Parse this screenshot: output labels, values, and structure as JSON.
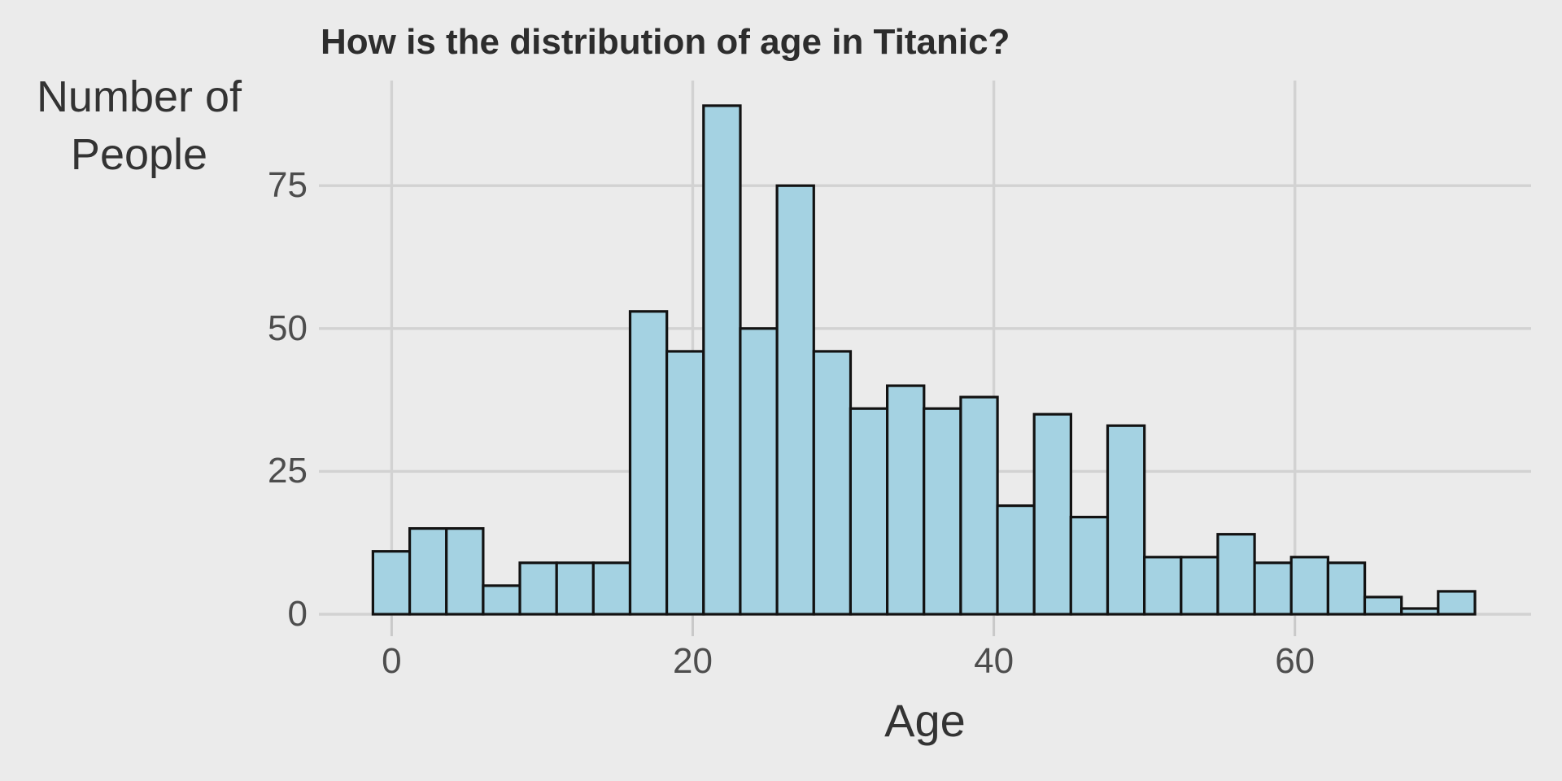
{
  "chart_data": {
    "type": "bar",
    "subtype": "histogram",
    "title": "How is the distribution of age in Titanic?",
    "xlabel": "Age",
    "ylabel": "Number of\nPeople",
    "x_ticks": [
      0,
      20,
      40,
      60
    ],
    "y_ticks": [
      0,
      25,
      50,
      75
    ],
    "xlim": [
      -4.83,
      75.69
    ],
    "ylim": [
      0,
      93.4
    ],
    "grid": "major-only",
    "legend": "none",
    "bins": {
      "bin_start_age": -1.24,
      "bin_width_age": 2.44,
      "counts": [
        11,
        15,
        15,
        5,
        9,
        9,
        9,
        53,
        46,
        89,
        50,
        75,
        46,
        36,
        40,
        36,
        38,
        19,
        35,
        17,
        33,
        10,
        10,
        14,
        9,
        10,
        9,
        3,
        1,
        4
      ]
    },
    "colors": {
      "background": "#EBEBEB",
      "gridline": "#D2D2D2",
      "axis_tick": "#C9C9C9",
      "bar_fill": "#A4D2E2",
      "bar_stroke": "#121212",
      "title_text": "#2D2D2D",
      "axis_title_text": "#333333",
      "tick_label_text": "#4D4D4D"
    }
  }
}
